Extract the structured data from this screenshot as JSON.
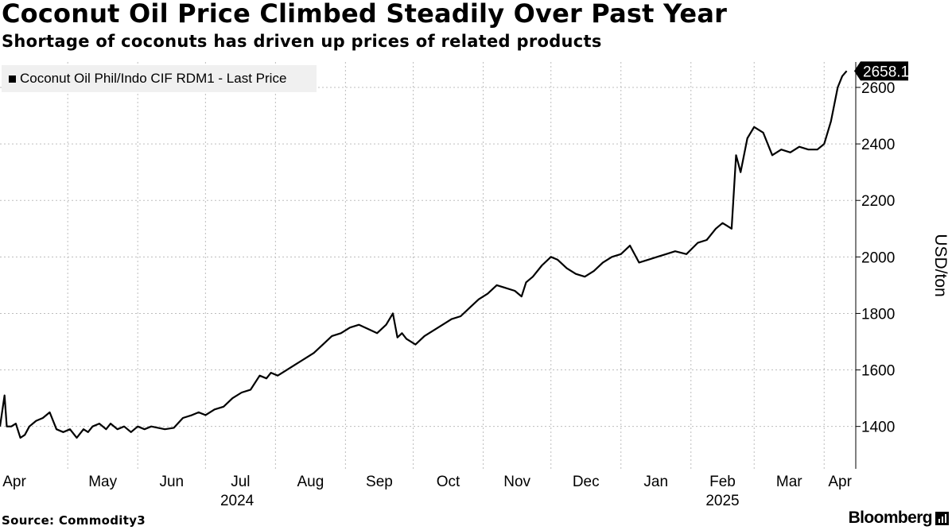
{
  "header": {
    "title": "Coconut Oil Price Climbed Steadily Over Past Year",
    "subtitle": "Shortage of coconuts has driven up prices of related products"
  },
  "footer": {
    "source": "Source: Commodity3",
    "brand": "Bloomberg"
  },
  "colors": {
    "line": "#000000",
    "grid": "#bdbdbd",
    "legend_bg": "#f0f0f0",
    "label_bg": "#000000"
  },
  "chart_data": {
    "type": "line",
    "title": "Coconut Oil Price Climbed Steadily Over Past Year",
    "subtitle": "Shortage of coconuts has driven up prices of related products",
    "ylabel": "USD/ton",
    "xlabel": "",
    "ylim": [
      1250,
      2690
    ],
    "xlim": [
      "2024-04-01",
      "2025-04-15"
    ],
    "y_ticks": [
      1400,
      1600,
      1800,
      2000,
      2200,
      2400,
      2600
    ],
    "x_ticks": [
      {
        "date": "2024-04-01",
        "label": "Apr"
      },
      {
        "date": "2024-05-01",
        "label": "May"
      },
      {
        "date": "2024-06-01",
        "label": "Jun"
      },
      {
        "date": "2024-07-01",
        "label": "Jul"
      },
      {
        "date": "2024-08-01",
        "label": "Aug"
      },
      {
        "date": "2024-09-01",
        "label": "Sep"
      },
      {
        "date": "2024-10-01",
        "label": "Oct"
      },
      {
        "date": "2024-11-01",
        "label": "Nov"
      },
      {
        "date": "2024-12-01",
        "label": "Dec"
      },
      {
        "date": "2025-01-01",
        "label": "Jan"
      },
      {
        "date": "2025-02-01",
        "label": "Feb"
      },
      {
        "date": "2025-03-01",
        "label": "Mar"
      },
      {
        "date": "2025-04-01",
        "label": "Apr"
      }
    ],
    "year_labels": [
      {
        "date": "2024-07-15",
        "label": "2024"
      },
      {
        "date": "2025-02-15",
        "label": "2025"
      }
    ],
    "grid": true,
    "legend": "top-left",
    "last_value_label": "2658.12",
    "series": [
      {
        "name": "Coconut Oil Phil/Indo CIF RDM1 - Last Price",
        "x": [
          "2024-04-01",
          "2024-04-03",
          "2024-04-04",
          "2024-04-06",
          "2024-04-08",
          "2024-04-10",
          "2024-04-12",
          "2024-04-14",
          "2024-04-17",
          "2024-04-20",
          "2024-04-23",
          "2024-04-26",
          "2024-04-29",
          "2024-05-02",
          "2024-05-05",
          "2024-05-08",
          "2024-05-10",
          "2024-05-12",
          "2024-05-15",
          "2024-05-18",
          "2024-05-20",
          "2024-05-23",
          "2024-05-26",
          "2024-05-29",
          "2024-06-01",
          "2024-06-04",
          "2024-06-07",
          "2024-06-10",
          "2024-06-13",
          "2024-06-17",
          "2024-06-21",
          "2024-06-25",
          "2024-06-28",
          "2024-07-01",
          "2024-07-05",
          "2024-07-09",
          "2024-07-13",
          "2024-07-17",
          "2024-07-21",
          "2024-07-25",
          "2024-07-28",
          "2024-07-30",
          "2024-08-02",
          "2024-08-06",
          "2024-08-10",
          "2024-08-14",
          "2024-08-18",
          "2024-08-22",
          "2024-08-26",
          "2024-08-30",
          "2024-09-03",
          "2024-09-07",
          "2024-09-11",
          "2024-09-15",
          "2024-09-19",
          "2024-09-22",
          "2024-09-24",
          "2024-09-26",
          "2024-09-28",
          "2024-10-02",
          "2024-10-06",
          "2024-10-10",
          "2024-10-14",
          "2024-10-18",
          "2024-10-22",
          "2024-10-26",
          "2024-10-30",
          "2024-11-03",
          "2024-11-07",
          "2024-11-11",
          "2024-11-15",
          "2024-11-18",
          "2024-11-20",
          "2024-11-23",
          "2024-11-27",
          "2024-12-01",
          "2024-12-04",
          "2024-12-08",
          "2024-12-12",
          "2024-12-16",
          "2024-12-20",
          "2024-12-24",
          "2024-12-28",
          "2025-01-01",
          "2025-01-05",
          "2025-01-09",
          "2025-01-13",
          "2025-01-17",
          "2025-01-21",
          "2025-01-25",
          "2025-01-30",
          "2025-02-04",
          "2025-02-08",
          "2025-02-12",
          "2025-02-15",
          "2025-02-17",
          "2025-02-19",
          "2025-02-21",
          "2025-02-23",
          "2025-02-26",
          "2025-03-01",
          "2025-03-05",
          "2025-03-09",
          "2025-03-13",
          "2025-03-17",
          "2025-03-21",
          "2025-03-25",
          "2025-03-29",
          "2025-04-01",
          "2025-04-04",
          "2025-04-07",
          "2025-04-09",
          "2025-04-11"
        ],
        "y": [
          1400,
          1510,
          1400,
          1400,
          1410,
          1360,
          1370,
          1400,
          1420,
          1430,
          1450,
          1390,
          1380,
          1390,
          1360,
          1390,
          1380,
          1400,
          1410,
          1390,
          1410,
          1390,
          1400,
          1380,
          1400,
          1390,
          1400,
          1395,
          1390,
          1395,
          1430,
          1440,
          1450,
          1440,
          1460,
          1470,
          1500,
          1520,
          1530,
          1580,
          1570,
          1590,
          1580,
          1600,
          1620,
          1640,
          1660,
          1690,
          1720,
          1730,
          1750,
          1760,
          1745,
          1730,
          1760,
          1800,
          1715,
          1730,
          1710,
          1690,
          1720,
          1740,
          1760,
          1780,
          1790,
          1820,
          1850,
          1870,
          1900,
          1890,
          1880,
          1860,
          1910,
          1930,
          1970,
          2000,
          1990,
          1960,
          1940,
          1930,
          1950,
          1980,
          2000,
          2010,
          2040,
          1980,
          1990,
          2000,
          2010,
          2020,
          2010,
          2050,
          2060,
          2100,
          2120,
          2110,
          2100,
          2360,
          2300,
          2420,
          2460,
          2440,
          2360,
          2380,
          2370,
          2390,
          2380,
          2380,
          2400,
          2480,
          2600,
          2640,
          2658.12
        ]
      }
    ]
  }
}
